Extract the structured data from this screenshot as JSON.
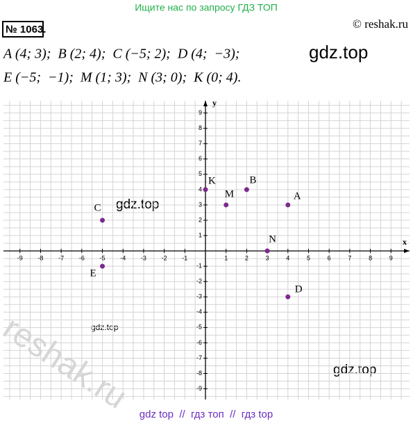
{
  "banner": "Ищите нас по запросу ГДЗ ТОП",
  "header": {
    "number": "№ 1063.",
    "site": "© reshak.ru"
  },
  "problem": {
    "line1": "A (4; 3);  B (2; 4);  C (−5; 2);  D (4;  −3);",
    "line2": "E (−5;  −1);  M (1; 3);  N (3; 0);  K (0; 4)."
  },
  "watermarks": [
    "gdz.top",
    "gdz.top",
    "gdz.top",
    "gdz.top",
    "reshak.ru"
  ],
  "footer": "gdz top  //  гдз топ  //  гдз top",
  "chart_data": {
    "type": "scatter",
    "xlabel": "x",
    "ylabel": "y",
    "x": [
      4,
      2,
      -5,
      4,
      -5,
      1,
      3,
      0
    ],
    "values": [
      3,
      4,
      2,
      -3,
      -1,
      3,
      0,
      4
    ],
    "point_labels": [
      "A",
      "B",
      "C",
      "D",
      "E",
      "M",
      "N",
      "K"
    ],
    "color": "#7b2a8c",
    "xlim": [
      -9.8,
      9.9
    ],
    "ylim": [
      -9.7,
      9.8
    ],
    "xticks": [
      -9,
      -8,
      -7,
      -6,
      -5,
      -4,
      -3,
      -2,
      -1,
      1,
      2,
      3,
      4,
      5,
      6,
      7,
      8,
      9
    ],
    "yticks": [
      -9,
      -8,
      -7,
      -6,
      -5,
      -4,
      -3,
      -2,
      -1,
      1,
      2,
      3,
      4,
      5,
      6,
      7,
      8,
      9
    ],
    "grid": true
  }
}
